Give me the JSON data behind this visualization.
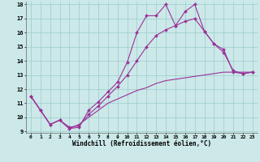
{
  "title": "",
  "xlabel": "Windchill (Refroidissement éolien,°C)",
  "xlim": [
    -0.5,
    23.5
  ],
  "ylim": [
    9,
    18
  ],
  "xticks": [
    0,
    1,
    2,
    3,
    4,
    5,
    6,
    7,
    8,
    9,
    10,
    11,
    12,
    13,
    14,
    15,
    16,
    17,
    18,
    19,
    20,
    21,
    22,
    23
  ],
  "yticks": [
    9,
    10,
    11,
    12,
    13,
    14,
    15,
    16,
    17,
    18
  ],
  "bg_color": "#cce8e8",
  "line_color": "#993399",
  "grid_color": "#99cccc",
  "line1_x": [
    0,
    1,
    2,
    3,
    4,
    5,
    6,
    7,
    8,
    9,
    10,
    11,
    12,
    13,
    14,
    15,
    16,
    17,
    18,
    19,
    20,
    21,
    22,
    23
  ],
  "line1_y": [
    11.5,
    10.5,
    9.5,
    9.8,
    9.2,
    9.3,
    10.5,
    11.1,
    11.8,
    12.5,
    13.9,
    16.0,
    17.2,
    17.2,
    18.0,
    16.5,
    17.5,
    18.0,
    16.1,
    15.2,
    14.8,
    13.2,
    13.1,
    13.2
  ],
  "line2_x": [
    0,
    1,
    2,
    3,
    4,
    5,
    6,
    7,
    8,
    9,
    10,
    11,
    12,
    13,
    14,
    15,
    16,
    17,
    18,
    19,
    20,
    21,
    22,
    23
  ],
  "line2_y": [
    11.5,
    10.5,
    9.5,
    9.8,
    9.3,
    9.4,
    10.2,
    10.8,
    11.5,
    12.2,
    13.0,
    14.0,
    15.0,
    15.8,
    16.2,
    16.5,
    16.8,
    17.0,
    16.1,
    15.2,
    14.6,
    13.3,
    13.1,
    13.2
  ],
  "line3_x": [
    0,
    1,
    2,
    3,
    4,
    5,
    6,
    7,
    8,
    9,
    10,
    11,
    12,
    13,
    14,
    15,
    16,
    17,
    18,
    19,
    20,
    21,
    22,
    23
  ],
  "line3_y": [
    11.5,
    10.5,
    9.5,
    9.8,
    9.2,
    9.5,
    10.0,
    10.5,
    11.0,
    11.3,
    11.6,
    11.9,
    12.1,
    12.4,
    12.6,
    12.7,
    12.8,
    12.9,
    13.0,
    13.1,
    13.2,
    13.2,
    13.2,
    13.2
  ]
}
